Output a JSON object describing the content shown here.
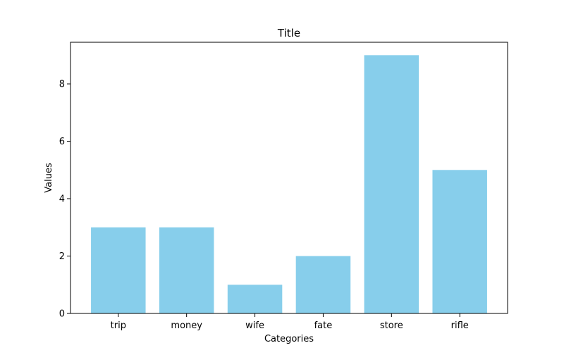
{
  "chart_data": {
    "type": "bar",
    "title": "Title",
    "xlabel": "Categories",
    "ylabel": "Values",
    "categories": [
      "trip",
      "money",
      "wife",
      "fate",
      "store",
      "rifle"
    ],
    "values": [
      3,
      3,
      1,
      2,
      9,
      5
    ],
    "ylim": [
      0,
      9.45
    ],
    "yticks": [
      0,
      2,
      4,
      6,
      8
    ],
    "bar_color": "#87CEEB",
    "grid": false,
    "legend": "none"
  }
}
